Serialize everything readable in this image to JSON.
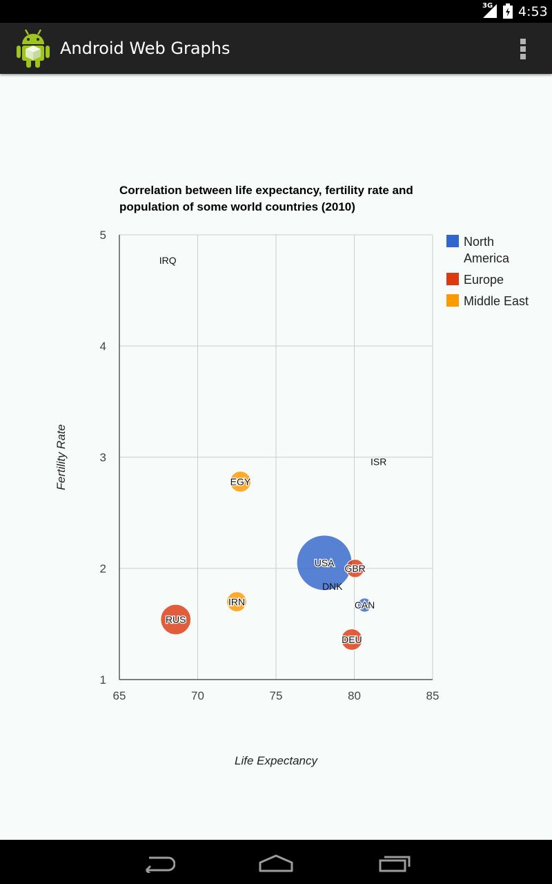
{
  "status_bar": {
    "network": "3G",
    "time": "4:53"
  },
  "app": {
    "title": "Android Web Graphs",
    "icon": "android-robot-icon"
  },
  "chart_data": {
    "type": "bubble",
    "title": "Correlation between life expectancy, fertility rate and population of some world countries (2010)",
    "xlabel": "Life Expectancy",
    "ylabel": "Fertility Rate",
    "xlim": [
      65,
      85
    ],
    "ylim": [
      1,
      5
    ],
    "xticks": [
      65,
      70,
      75,
      80,
      85
    ],
    "yticks": [
      1,
      2,
      3,
      4,
      5
    ],
    "grid": true,
    "legend_position": "right",
    "series": [
      {
        "name": "North America",
        "color": "#3366cc"
      },
      {
        "name": "Europe",
        "color": "#dc3912"
      },
      {
        "name": "Middle East",
        "color": "#ff9900"
      }
    ],
    "points": [
      {
        "id": "CAN",
        "x": 80.66,
        "y": 1.67,
        "series": "North America",
        "population": 33739900
      },
      {
        "id": "DEU",
        "x": 79.84,
        "y": 1.36,
        "series": "Europe",
        "population": 81902307
      },
      {
        "id": "DNK",
        "x": 78.6,
        "y": 1.84,
        "series": "Europe",
        "population": 5523095
      },
      {
        "id": "EGY",
        "x": 72.73,
        "y": 2.78,
        "series": "Middle East",
        "population": 79716203
      },
      {
        "id": "GBR",
        "x": 80.05,
        "y": 2.0,
        "series": "Europe",
        "population": 61801570
      },
      {
        "id": "IRN",
        "x": 72.49,
        "y": 1.7,
        "series": "Middle East",
        "population": 73137148
      },
      {
        "id": "IRQ",
        "x": 68.09,
        "y": 4.77,
        "series": "Middle East",
        "population": 31090763
      },
      {
        "id": "ISR",
        "x": 81.55,
        "y": 2.96,
        "series": "Middle East",
        "population": 7485600
      },
      {
        "id": "RUS",
        "x": 68.6,
        "y": 1.54,
        "series": "Europe",
        "population": 141850000
      },
      {
        "id": "USA",
        "x": 78.09,
        "y": 2.05,
        "series": "North America",
        "population": 307007000
      }
    ]
  },
  "nav_bar": {
    "icons": [
      "back-icon",
      "home-icon",
      "recent-apps-icon"
    ]
  }
}
